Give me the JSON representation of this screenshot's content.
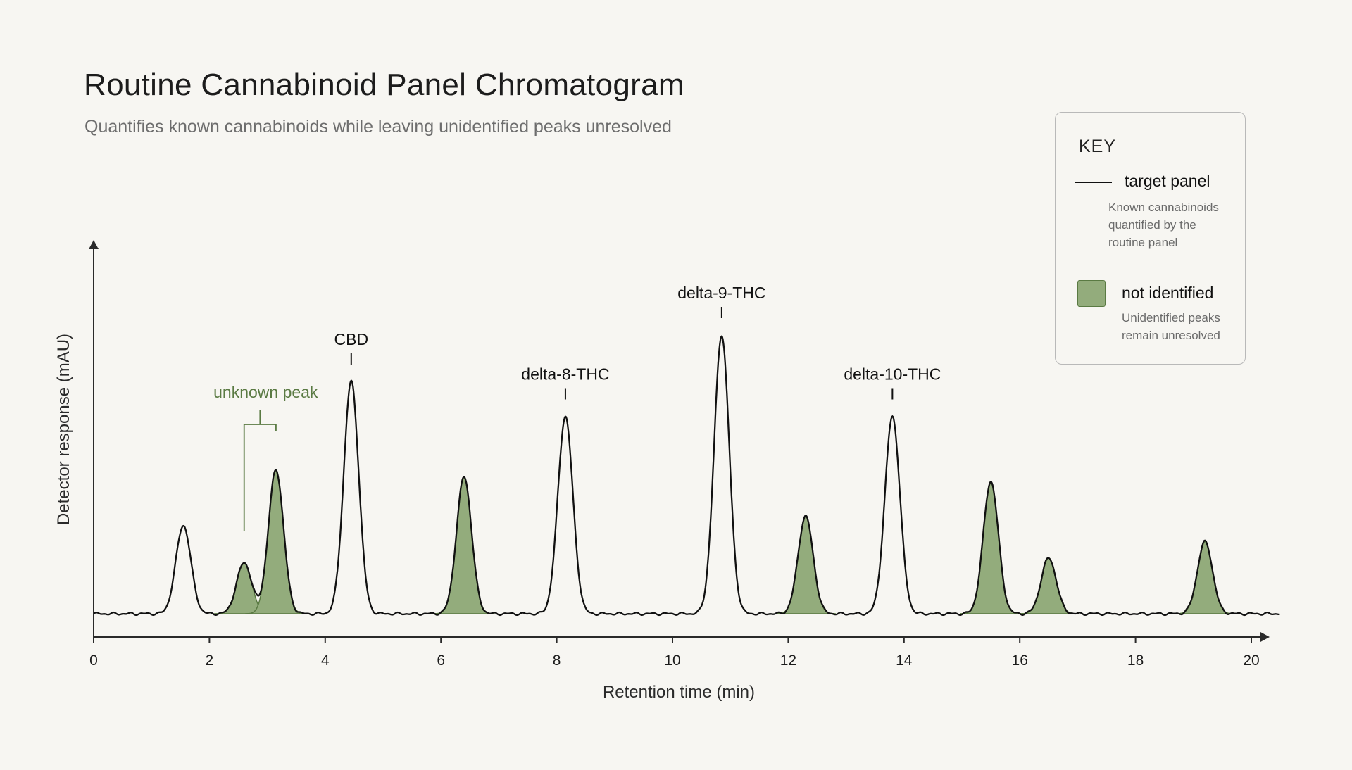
{
  "title": "Routine Cannabinoid Panel Chromatogram",
  "subtitle": "Quantifies known cannabinoids while leaving unidentified peaks unresolved",
  "legend": {
    "title": "KEY",
    "items": [
      {
        "name": "target panel",
        "description": "Known cannabinoids quantified by the routine panel",
        "color": "#111111"
      },
      {
        "name": "not identified",
        "description": "Unidentified peaks remain unresolved",
        "color": "#93ac7c"
      }
    ]
  },
  "chart_data": {
    "type": "line",
    "xlabel": "Retention time (min)",
    "ylabel": "Detector response (mAU)",
    "xlim": [
      0,
      20.5
    ],
    "ylim": [
      0,
      105
    ],
    "x_ticks": [
      "0",
      "2",
      "4",
      "6",
      "8",
      "10",
      "12",
      "14",
      "16",
      "18",
      "20"
    ],
    "y_ticks_shown": false,
    "grid": false,
    "legend_position": "top-right",
    "series": [
      {
        "name": "target panel",
        "color": "#111111",
        "filled": false,
        "peaks": [
          {
            "label": "",
            "rt": 1.55,
            "height": 38
          },
          {
            "label": "CBD",
            "rt": 4.45,
            "height": 100
          },
          {
            "label": "delta-8-THC",
            "rt": 8.15,
            "height": 85
          },
          {
            "label": "delta-9-THC",
            "rt": 10.85,
            "height": 120
          },
          {
            "label": "delta-10-THC",
            "rt": 13.8,
            "height": 85
          }
        ]
      },
      {
        "name": "not identified",
        "color": "#93ac7c",
        "filled": true,
        "peaks": [
          {
            "label": "unknown peak",
            "rt": 2.6,
            "height": 22
          },
          {
            "label": "",
            "rt": 3.15,
            "height": 62
          },
          {
            "label": "",
            "rt": 6.4,
            "height": 59
          },
          {
            "label": "",
            "rt": 12.3,
            "height": 42
          },
          {
            "label": "",
            "rt": 15.5,
            "height": 57
          },
          {
            "label": "",
            "rt": 16.5,
            "height": 24
          },
          {
            "label": "",
            "rt": 19.2,
            "height": 31
          }
        ]
      }
    ],
    "annotations": [
      {
        "text": "unknown peak",
        "target_rt": [
          2.6,
          3.15
        ]
      }
    ]
  }
}
